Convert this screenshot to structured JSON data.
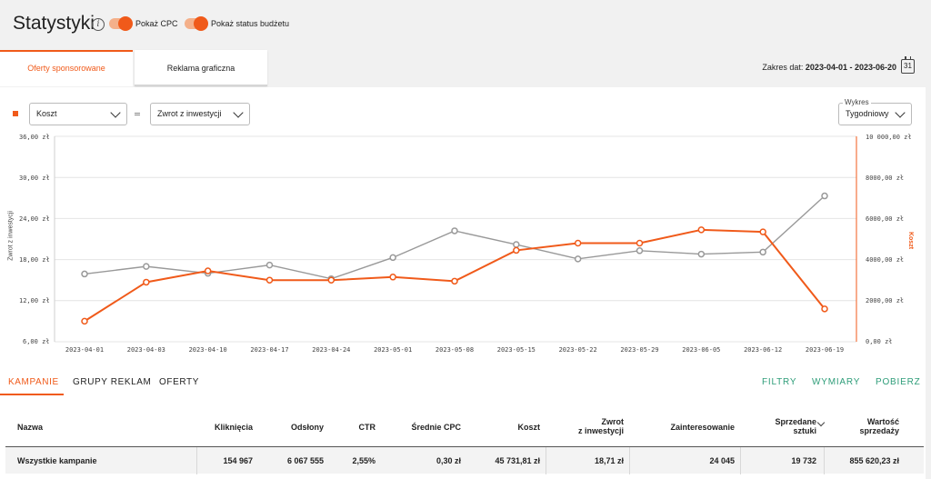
{
  "header": {
    "title": "Statystyki",
    "toggle_cpc_label": "Pokaż CPC",
    "toggle_budget_label": "Pokaż status budżetu",
    "accent": "#f05a1a"
  },
  "tabs": {
    "sponsored": "Oferty sponsorowane",
    "display": "Reklama graficzna"
  },
  "date_range": {
    "label": "Zakres dat:",
    "value": "2023-04-01 - 2023-06-20",
    "calendar_day": "31"
  },
  "controls": {
    "metric_left": "Koszt",
    "metric_right": "Zwrot z inwestycji",
    "chart_label": "Wykres",
    "chart_period": "Tygodniowy"
  },
  "chart_data": {
    "type": "line",
    "x": [
      "2023-04-01",
      "2023-04-03",
      "2023-04-10",
      "2023-04-17",
      "2023-04-24",
      "2023-05-01",
      "2023-05-08",
      "2023-05-15",
      "2023-05-22",
      "2023-05-29",
      "2023-06-05",
      "2023-06-12",
      "2023-06-19"
    ],
    "left_axis": {
      "label": "Zwrot z inwestycji",
      "ticks": [
        "36,00 zł",
        "30,00 zł",
        "24,00 zł",
        "18,00 zł",
        "12,00 zł",
        "6,00 zł"
      ],
      "range": [
        6,
        36
      ]
    },
    "right_axis": {
      "label": "Koszt",
      "ticks": [
        "10 000,00 zł",
        "8000,00 zł",
        "6000,00 zł",
        "4000,00 zł",
        "2000,00 zł",
        "0,00 zł"
      ],
      "range": [
        0,
        10000
      ]
    },
    "series": [
      {
        "name": "Zwrot z inwestycji",
        "axis": "left",
        "color": "#999999",
        "values": [
          15.9,
          17.0,
          16.0,
          17.2,
          15.2,
          18.3,
          22.2,
          20.2,
          18.1,
          19.3,
          18.8,
          19.1,
          27.3
        ]
      },
      {
        "name": "Koszt",
        "axis": "right",
        "color": "#f05a1a",
        "values": [
          1000,
          2900,
          3450,
          3000,
          3000,
          3150,
          2950,
          4450,
          4800,
          4800,
          5450,
          5350,
          1600
        ]
      }
    ],
    "grid": true
  },
  "bottom_tabs": [
    "KAMPANIE",
    "GRUPY REKLAM",
    "OFERTY"
  ],
  "actions": [
    "FILTRY",
    "WYMIARY",
    "POBIERZ"
  ],
  "table": {
    "headers": {
      "name": "Nazwa",
      "clicks": "Kliknięcia",
      "views": "Odsłony",
      "ctr": "CTR",
      "avg_cpc": "Średnie CPC",
      "cost": "Koszt",
      "roi_1": "Zwrot",
      "roi_2": "z inwestycji",
      "interest": "Zainteresowanie",
      "sold_1": "Sprzedane",
      "sold_2": "sztuki",
      "value_1": "Wartość",
      "value_2": "sprzedaży"
    },
    "row": {
      "name": "Wszystkie kampanie",
      "clicks": "154 967",
      "views": "6 067 555",
      "ctr": "2,55%",
      "avg_cpc": "0,30 zł",
      "cost": "45 731,81 zł",
      "roi": "18,71 zł",
      "interest": "24 045",
      "sold": "19 732",
      "value": "855 620,23 zł"
    }
  }
}
